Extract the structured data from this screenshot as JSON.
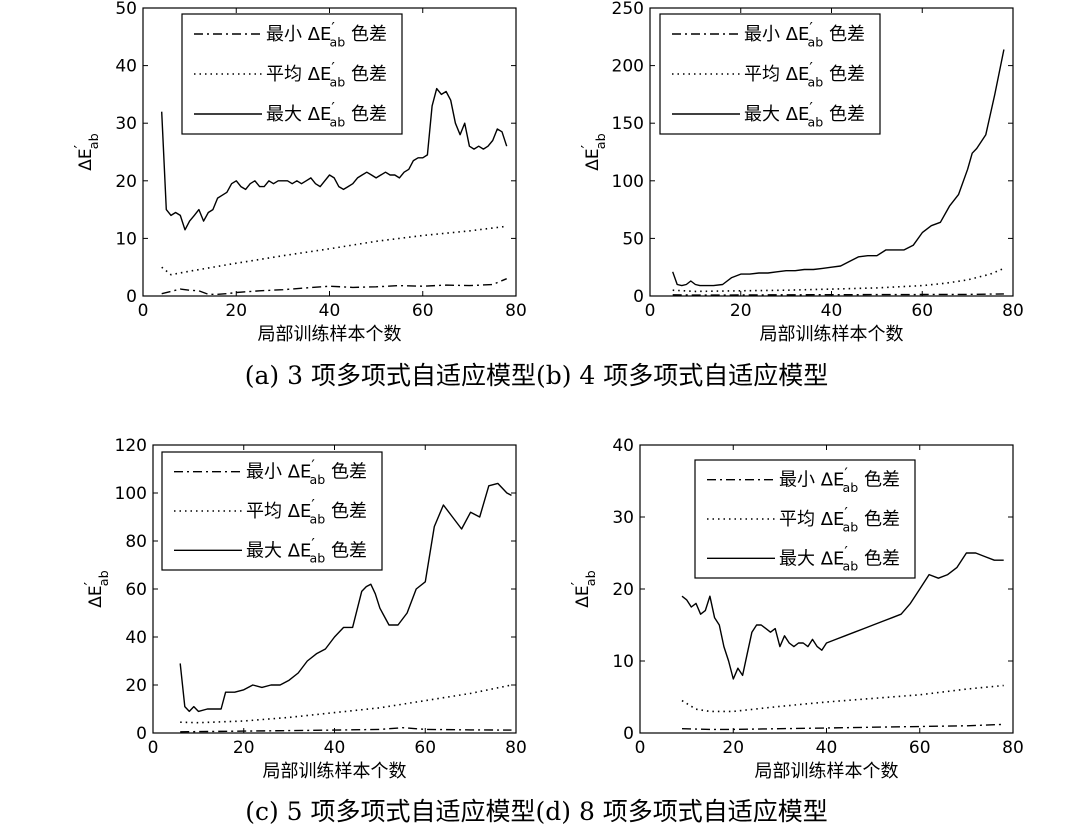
{
  "figure": {
    "caption_top": "(a) 3 项多项式自适应模型(b) 4 项多项式自适应模型",
    "caption_bottom": "(c) 5 项多项式自适应模型(d) 8 项多项式自适应模型"
  },
  "chart_data": [
    {
      "id": "a",
      "type": "line",
      "xlabel": "局部训练样本个数",
      "ylabel": "ΔE′ab",
      "xlim": [
        0,
        80
      ],
      "ylim": [
        0,
        50
      ],
      "xticks": [
        0,
        20,
        40,
        60,
        80
      ],
      "yticks": [
        0,
        10,
        20,
        30,
        40,
        50
      ],
      "grid": false,
      "legend_position": "top-left",
      "series": [
        {
          "name": "最小 ΔE′ab 色差",
          "style": "dashdot",
          "x": [
            4,
            6,
            8,
            10,
            12,
            14,
            16,
            18,
            20,
            25,
            30,
            35,
            40,
            45,
            50,
            55,
            60,
            65,
            70,
            75,
            78
          ],
          "y": [
            0.4,
            0.8,
            1.2,
            1.0,
            0.9,
            0.3,
            0.3,
            0.4,
            0.6,
            0.9,
            1.1,
            1.4,
            1.7,
            1.5,
            1.6,
            1.8,
            1.7,
            1.9,
            1.8,
            2.0,
            3.0
          ]
        },
        {
          "name": "平均 ΔE′ab 色差",
          "style": "dotted",
          "x": [
            4,
            6,
            10,
            20,
            30,
            40,
            50,
            60,
            70,
            78
          ],
          "y": [
            5.0,
            3.7,
            4.3,
            5.7,
            7.0,
            8.2,
            9.5,
            10.5,
            11.3,
            12.1
          ]
        },
        {
          "name": "最大 ΔE′ab 色差",
          "style": "solid",
          "x": [
            4,
            5,
            6,
            7,
            8,
            9,
            10,
            11,
            12,
            13,
            14,
            15,
            16,
            17,
            18,
            19,
            20,
            21,
            22,
            23,
            24,
            25,
            26,
            27,
            28,
            29,
            30,
            31,
            32,
            33,
            34,
            35,
            36,
            37,
            38,
            39,
            40,
            41,
            42,
            43,
            44,
            45,
            46,
            47,
            48,
            49,
            50,
            51,
            52,
            53,
            54,
            55,
            56,
            57,
            58,
            59,
            60,
            61,
            62,
            63,
            64,
            65,
            66,
            67,
            68,
            69,
            70,
            71,
            72,
            73,
            74,
            75,
            76,
            77,
            78
          ],
          "y": [
            32,
            15,
            14,
            14.5,
            14,
            11.5,
            13,
            14,
            15,
            13,
            14.5,
            15,
            17,
            17.5,
            18,
            19.5,
            20,
            19,
            18.5,
            19.5,
            20,
            19,
            19,
            20,
            19.5,
            20,
            20,
            20,
            19.5,
            20,
            19.5,
            20,
            20.5,
            19.5,
            19,
            20,
            21,
            20.5,
            19,
            18.5,
            19,
            19.5,
            20.5,
            21,
            21.5,
            21,
            20.5,
            21,
            21.5,
            21,
            21,
            20.5,
            21.5,
            22,
            23.5,
            24,
            24,
            24.5,
            33,
            36,
            35,
            35.5,
            34,
            30,
            28,
            30,
            26,
            25.5,
            26,
            25.5,
            26,
            27,
            29,
            28.5,
            26
          ]
        }
      ]
    },
    {
      "id": "b",
      "type": "line",
      "xlabel": "局部训练样本个数",
      "ylabel": "ΔE′ab",
      "xlim": [
        0,
        80
      ],
      "ylim": [
        0,
        250
      ],
      "xticks": [
        0,
        20,
        40,
        60,
        80
      ],
      "yticks": [
        0,
        50,
        100,
        150,
        200,
        250
      ],
      "grid": false,
      "legend_position": "top-left",
      "series": [
        {
          "name": "最小 ΔE′ab 色差",
          "style": "dashdot",
          "x": [
            5,
            10,
            20,
            30,
            40,
            50,
            60,
            70,
            78
          ],
          "y": [
            1.0,
            0.8,
            0.9,
            1.0,
            1.1,
            1.2,
            1.3,
            1.4,
            1.8
          ]
        },
        {
          "name": "平均 ΔE′ab 色差",
          "style": "dotted",
          "x": [
            5,
            10,
            20,
            30,
            40,
            50,
            60,
            65,
            70,
            75,
            78
          ],
          "y": [
            5,
            4,
            4.5,
            5,
            6,
            7,
            9,
            11,
            14,
            19,
            24
          ]
        },
        {
          "name": "最大 ΔE′ab 色差",
          "style": "solid",
          "x": [
            5,
            6,
            7,
            8,
            9,
            10,
            11,
            12,
            14,
            16,
            18,
            20,
            22,
            24,
            26,
            28,
            30,
            32,
            34,
            36,
            38,
            40,
            42,
            44,
            46,
            48,
            50,
            52,
            54,
            56,
            58,
            60,
            62,
            64,
            66,
            68,
            70,
            71,
            72,
            74,
            76,
            78
          ],
          "y": [
            21,
            10,
            9,
            10,
            13,
            10,
            9,
            9,
            9,
            10,
            16,
            19,
            19,
            20,
            20,
            21,
            22,
            22,
            23,
            23,
            24,
            25,
            26,
            30,
            34,
            35,
            35,
            40,
            40,
            40,
            44,
            55,
            61,
            64,
            78,
            88,
            110,
            124,
            128,
            140,
            175,
            214
          ]
        }
      ]
    },
    {
      "id": "c",
      "type": "line",
      "xlabel": "局部训练样本个数",
      "ylabel": "ΔE′ab",
      "xlim": [
        0,
        80
      ],
      "ylim": [
        0,
        120
      ],
      "xticks": [
        0,
        20,
        40,
        60,
        80
      ],
      "yticks": [
        0,
        20,
        40,
        60,
        80,
        100,
        120
      ],
      "grid": false,
      "legend_position": "top-left",
      "series": [
        {
          "name": "最小 ΔE′ab 色差",
          "style": "dashdot",
          "x": [
            6,
            10,
            20,
            30,
            40,
            50,
            55,
            60,
            70,
            79
          ],
          "y": [
            0.5,
            0.6,
            0.8,
            1.0,
            1.2,
            1.5,
            2.2,
            1.5,
            1.3,
            1.2
          ]
        },
        {
          "name": "平均 ΔE′ab 色差",
          "style": "dotted",
          "x": [
            6,
            10,
            20,
            30,
            40,
            50,
            60,
            70,
            79
          ],
          "y": [
            4.5,
            4.3,
            5.0,
            6.5,
            8.5,
            10.5,
            13.5,
            16.5,
            20
          ]
        },
        {
          "name": "最大 ΔE′ab 色差",
          "style": "solid",
          "x": [
            6,
            7,
            8,
            9,
            10,
            12,
            14,
            15,
            16,
            18,
            20,
            22,
            24,
            26,
            28,
            30,
            32,
            34,
            36,
            38,
            40,
            42,
            44,
            46,
            47,
            48,
            49,
            50,
            52,
            54,
            56,
            58,
            60,
            62,
            64,
            66,
            68,
            70,
            72,
            74,
            76,
            78,
            79
          ],
          "y": [
            29,
            11,
            9,
            11,
            9,
            10,
            10,
            10,
            17,
            17,
            18,
            20,
            19,
            20,
            20,
            22,
            25,
            30,
            33,
            35,
            40,
            44,
            44,
            59,
            61,
            62,
            58,
            52,
            45,
            45,
            50,
            60,
            63,
            86,
            95,
            90,
            85,
            92,
            90,
            103,
            104,
            100,
            99
          ]
        }
      ]
    },
    {
      "id": "d",
      "type": "line",
      "xlabel": "局部训练样本个数",
      "ylabel": "ΔE′ab",
      "xlim": [
        0,
        80
      ],
      "ylim": [
        0,
        40
      ],
      "xticks": [
        0,
        20,
        40,
        60,
        80
      ],
      "yticks": [
        0,
        10,
        20,
        30,
        40
      ],
      "grid": false,
      "legend_position": "top-right",
      "series": [
        {
          "name": "最小 ΔE′ab 色差",
          "style": "dashdot",
          "x": [
            9,
            15,
            20,
            30,
            40,
            50,
            60,
            70,
            78
          ],
          "y": [
            0.6,
            0.5,
            0.5,
            0.6,
            0.7,
            0.8,
            0.9,
            1.0,
            1.2
          ]
        },
        {
          "name": "平均 ΔE′ab 色差",
          "style": "dotted",
          "x": [
            9,
            12,
            15,
            20,
            30,
            40,
            50,
            60,
            70,
            78
          ],
          "y": [
            4.5,
            3.3,
            3.0,
            3.0,
            3.7,
            4.3,
            4.8,
            5.3,
            6.1,
            6.6
          ]
        },
        {
          "name": "最大 ΔE′ab 色差",
          "style": "solid",
          "x": [
            9,
            10,
            11,
            12,
            13,
            14,
            15,
            16,
            17,
            18,
            19,
            20,
            21,
            22,
            23,
            24,
            25,
            26,
            27,
            28,
            29,
            30,
            31,
            32,
            33,
            34,
            35,
            36,
            37,
            38,
            39,
            40,
            42,
            44,
            46,
            48,
            50,
            52,
            54,
            56,
            58,
            60,
            62,
            64,
            66,
            68,
            70,
            72,
            74,
            76,
            78
          ],
          "y": [
            19,
            18.5,
            17.5,
            18,
            16.5,
            17,
            19,
            16,
            15,
            12,
            10,
            7.5,
            9,
            8,
            11,
            14,
            15,
            15,
            14.5,
            14,
            14.5,
            12,
            13.5,
            12.5,
            12,
            12.5,
            12.5,
            12,
            13,
            12,
            11.5,
            12.5,
            13,
            13.5,
            14,
            14.5,
            15,
            15.5,
            16,
            16.5,
            18,
            20,
            22,
            21.5,
            22,
            23,
            25,
            25,
            24.5,
            24,
            24
          ]
        }
      ]
    }
  ]
}
